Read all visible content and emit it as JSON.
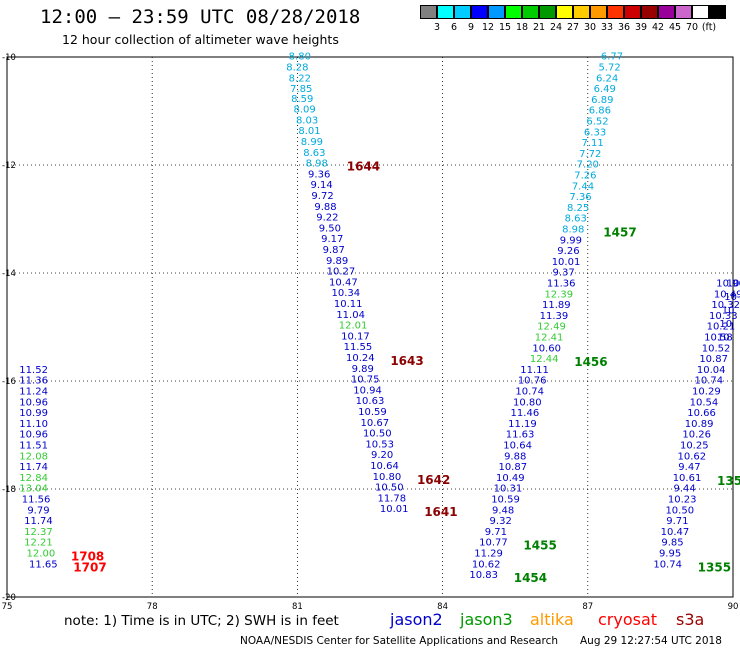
{
  "header": {
    "title": "12:00 – 23:59 UTC 08/28/2018",
    "subtitle": "12 hour collection of altimeter wave heights"
  },
  "legend": {
    "colors": [
      "#808080",
      "#00ffff",
      "#00ccff",
      "#0000ff",
      "#0099ff",
      "#00ff00",
      "#00cc00",
      "#009900",
      "#ffff00",
      "#ffcc00",
      "#ff9900",
      "#ff3300",
      "#cc0000",
      "#990000",
      "#990099",
      "#cc66cc",
      "#ffffff",
      "#000000"
    ],
    "labels": [
      "3",
      "6",
      "9",
      "12",
      "15",
      "18",
      "21",
      "24",
      "27",
      "30",
      "33",
      "36",
      "39",
      "42",
      "45",
      "70",
      "(ft)"
    ]
  },
  "map": {
    "x_ticks": [
      "75",
      "78",
      "81",
      "84",
      "87",
      "90"
    ],
    "y_ticks": [
      "-10",
      "-12",
      "-14",
      "-16",
      "-18",
      "-20"
    ],
    "lon_range": [
      75,
      90
    ],
    "lat_range": [
      -20,
      -10
    ]
  },
  "tracks": [
    {
      "pass": "1644",
      "pass_color": "#8b0000",
      "points": [
        {
          "lon": 81.05,
          "lat": -10.05,
          "v": "8.80"
        },
        {
          "lon": 81.0,
          "lat": -10.25,
          "v": "8.28"
        },
        {
          "lon": 81.05,
          "lat": -10.45,
          "v": "8.22"
        },
        {
          "lon": 81.08,
          "lat": -10.65,
          "v": "7.85"
        },
        {
          "lon": 81.1,
          "lat": -10.83,
          "v": "8.59"
        },
        {
          "lon": 81.15,
          "lat": -11.03,
          "v": "8.09"
        },
        {
          "lon": 81.2,
          "lat": -11.23,
          "v": "8.03"
        },
        {
          "lon": 81.25,
          "lat": -11.43,
          "v": "8.01"
        },
        {
          "lon": 81.3,
          "lat": -11.63,
          "v": "8.99"
        },
        {
          "lon": 81.35,
          "lat": -11.83,
          "v": "8.63"
        },
        {
          "lon": 81.4,
          "lat": -12.03,
          "v": "8.98"
        }
      ]
    },
    {
      "pass": "1643",
      "pass_color": "#8b0000",
      "points": [
        {
          "lon": 81.45,
          "lat": -12.23,
          "v": "9.36"
        },
        {
          "lon": 81.5,
          "lat": -12.43,
          "v": "9.14"
        },
        {
          "lon": 81.52,
          "lat": -12.63,
          "v": "9.72"
        },
        {
          "lon": 81.58,
          "lat": -12.83,
          "v": "9.88"
        },
        {
          "lon": 81.62,
          "lat": -13.03,
          "v": "9.22"
        },
        {
          "lon": 81.67,
          "lat": -13.23,
          "v": "9.50"
        },
        {
          "lon": 81.72,
          "lat": -13.43,
          "v": "9.17"
        },
        {
          "lon": 81.75,
          "lat": -13.63,
          "v": "9.87"
        },
        {
          "lon": 81.82,
          "lat": -13.83,
          "v": "9.89"
        },
        {
          "lon": 81.9,
          "lat": -14.03,
          "v": "10.27"
        },
        {
          "lon": 81.95,
          "lat": -14.23,
          "v": "10.47"
        },
        {
          "lon": 82.0,
          "lat": -14.43,
          "v": "10.34"
        },
        {
          "lon": 82.05,
          "lat": -14.63,
          "v": "10.11"
        },
        {
          "lon": 82.1,
          "lat": -14.83,
          "v": "11.04"
        },
        {
          "lon": 82.15,
          "lat": -15.03,
          "v": "12.01"
        },
        {
          "lon": 82.2,
          "lat": -15.23,
          "v": "10.17"
        },
        {
          "lon": 82.25,
          "lat": -15.43,
          "v": "11.55"
        },
        {
          "lon": 82.3,
          "lat": -15.63,
          "v": "10.24"
        }
      ]
    },
    {
      "pass": "1642",
      "pass_color": "#8b0000",
      "points": [
        {
          "lon": 82.35,
          "lat": -15.83,
          "v": "9.89"
        },
        {
          "lon": 82.4,
          "lat": -16.03,
          "v": "10.75"
        },
        {
          "lon": 82.45,
          "lat": -16.23,
          "v": "10.94"
        },
        {
          "lon": 82.5,
          "lat": -16.43,
          "v": "10.63"
        },
        {
          "lon": 82.55,
          "lat": -16.63,
          "v": "10.59"
        },
        {
          "lon": 82.6,
          "lat": -16.83,
          "v": "10.67"
        },
        {
          "lon": 82.65,
          "lat": -17.03,
          "v": "10.50"
        },
        {
          "lon": 82.7,
          "lat": -17.23,
          "v": "10.53"
        },
        {
          "lon": 82.75,
          "lat": -17.43,
          "v": "9.20"
        },
        {
          "lon": 82.8,
          "lat": -17.63,
          "v": "10.64"
        },
        {
          "lon": 82.85,
          "lat": -17.83,
          "v": "10.80"
        }
      ]
    },
    {
      "pass": "1641",
      "pass_color": "#8b0000",
      "points": [
        {
          "lon": 82.9,
          "lat": -18.03,
          "v": "10.50"
        },
        {
          "lon": 82.95,
          "lat": -18.23,
          "v": "11.78"
        },
        {
          "lon": 83.0,
          "lat": -18.43,
          "v": "10.01"
        }
      ]
    },
    {
      "pass": "1457",
      "pass_color": "#008000",
      "points": [
        {
          "lon": 87.5,
          "lat": -10.05,
          "v": "6.77"
        },
        {
          "lon": 87.45,
          "lat": -10.25,
          "v": "5.72"
        },
        {
          "lon": 87.4,
          "lat": -10.45,
          "v": "6.24"
        },
        {
          "lon": 87.35,
          "lat": -10.65,
          "v": "6.49"
        },
        {
          "lon": 87.3,
          "lat": -10.85,
          "v": "6.89"
        },
        {
          "lon": 87.25,
          "lat": -11.05,
          "v": "6.86"
        },
        {
          "lon": 87.2,
          "lat": -11.25,
          "v": "6.52"
        },
        {
          "lon": 87.15,
          "lat": -11.45,
          "v": "6.33"
        },
        {
          "lon": 87.1,
          "lat": -11.65,
          "v": "7.11"
        },
        {
          "lon": 87.05,
          "lat": -11.85,
          "v": "7.72"
        },
        {
          "lon": 87.0,
          "lat": -12.05,
          "v": "7.20"
        },
        {
          "lon": 86.95,
          "lat": -12.25,
          "v": "7.26"
        },
        {
          "lon": 86.9,
          "lat": -12.45,
          "v": "7.44"
        },
        {
          "lon": 86.85,
          "lat": -12.65,
          "v": "7.36"
        },
        {
          "lon": 86.8,
          "lat": -12.85,
          "v": "8.25"
        },
        {
          "lon": 86.75,
          "lat": -13.05,
          "v": "8.63"
        },
        {
          "lon": 86.7,
          "lat": -13.25,
          "v": "8.98"
        }
      ]
    },
    {
      "pass": "1456",
      "pass_color": "#008000",
      "points": [
        {
          "lon": 86.65,
          "lat": -13.45,
          "v": "9.99"
        },
        {
          "lon": 86.6,
          "lat": -13.65,
          "v": "9.26"
        },
        {
          "lon": 86.55,
          "lat": -13.85,
          "v": "10.01"
        },
        {
          "lon": 86.5,
          "lat": -14.05,
          "v": "9.37"
        },
        {
          "lon": 86.45,
          "lat": -14.25,
          "v": "11.36"
        },
        {
          "lon": 86.4,
          "lat": -14.45,
          "v": "12.39"
        },
        {
          "lon": 86.35,
          "lat": -14.65,
          "v": "11.89"
        },
        {
          "lon": 86.3,
          "lat": -14.85,
          "v": "11.39"
        },
        {
          "lon": 86.25,
          "lat": -15.05,
          "v": "12.49"
        },
        {
          "lon": 86.2,
          "lat": -15.25,
          "v": "12.41"
        },
        {
          "lon": 86.15,
          "lat": -15.45,
          "v": "10.60"
        },
        {
          "lon": 86.1,
          "lat": -15.65,
          "v": "12.44"
        }
      ]
    },
    {
      "pass": "1455",
      "pass_color": "#008000",
      "points": [
        {
          "lon": 85.9,
          "lat": -15.85,
          "v": "11.11"
        },
        {
          "lon": 85.85,
          "lat": -16.05,
          "v": "10.76"
        },
        {
          "lon": 85.8,
          "lat": -16.25,
          "v": "10.74"
        },
        {
          "lon": 85.75,
          "lat": -16.45,
          "v": "10.80"
        },
        {
          "lon": 85.7,
          "lat": -16.65,
          "v": "11.46"
        },
        {
          "lon": 85.65,
          "lat": -16.85,
          "v": "11.19"
        },
        {
          "lon": 85.6,
          "lat": -17.05,
          "v": "11.63"
        },
        {
          "lon": 85.55,
          "lat": -17.25,
          "v": "10.64"
        },
        {
          "lon": 85.5,
          "lat": -17.45,
          "v": "9.88"
        },
        {
          "lon": 85.45,
          "lat": -17.65,
          "v": "10.87"
        },
        {
          "lon": 85.4,
          "lat": -17.85,
          "v": "10.49"
        },
        {
          "lon": 85.35,
          "lat": -18.05,
          "v": "10.31"
        },
        {
          "lon": 85.3,
          "lat": -18.25,
          "v": "10.59"
        },
        {
          "lon": 85.25,
          "lat": -18.45,
          "v": "9.48"
        },
        {
          "lon": 85.2,
          "lat": -18.65,
          "v": "9.32"
        },
        {
          "lon": 85.1,
          "lat": -18.85,
          "v": "9.71"
        },
        {
          "lon": 85.05,
          "lat": -19.05,
          "v": "10.77"
        }
      ]
    },
    {
      "pass": "1454",
      "pass_color": "#008000",
      "points": [
        {
          "lon": 84.95,
          "lat": -19.25,
          "v": "11.29"
        },
        {
          "lon": 84.9,
          "lat": -19.45,
          "v": "10.62"
        },
        {
          "lon": 84.85,
          "lat": -19.65,
          "v": "10.83"
        }
      ]
    },
    {
      "pass": "1708",
      "pass_color": "#ff0000",
      "points": [
        {
          "lon": 75.55,
          "lat": -15.85,
          "v": "11.52"
        },
        {
          "lon": 75.55,
          "lat": -16.05,
          "v": "11.36"
        },
        {
          "lon": 75.55,
          "lat": -16.25,
          "v": "11.24"
        },
        {
          "lon": 75.55,
          "lat": -16.45,
          "v": "10.96"
        },
        {
          "lon": 75.55,
          "lat": -16.65,
          "v": "10.99"
        },
        {
          "lon": 75.55,
          "lat": -16.85,
          "v": "11.10"
        },
        {
          "lon": 75.55,
          "lat": -17.05,
          "v": "10.96"
        },
        {
          "lon": 75.55,
          "lat": -17.25,
          "v": "11.51"
        },
        {
          "lon": 75.55,
          "lat": -17.45,
          "v": "12.08"
        },
        {
          "lon": 75.55,
          "lat": -17.65,
          "v": "11.74"
        },
        {
          "lon": 75.55,
          "lat": -17.85,
          "v": "12.84"
        },
        {
          "lon": 75.55,
          "lat": -18.05,
          "v": "13.04"
        },
        {
          "lon": 75.6,
          "lat": -18.25,
          "v": "11.56"
        },
        {
          "lon": 75.65,
          "lat": -18.45,
          "v": "9.79"
        },
        {
          "lon": 75.65,
          "lat": -18.65,
          "v": "11.74"
        },
        {
          "lon": 75.65,
          "lat": -18.85,
          "v": "12.37"
        },
        {
          "lon": 75.65,
          "lat": -19.05,
          "v": "12.21"
        },
        {
          "lon": 75.7,
          "lat": -19.25,
          "v": "12.00"
        }
      ]
    },
    {
      "pass": "1707",
      "pass_color": "#ff0000",
      "points": [
        {
          "lon": 75.75,
          "lat": -19.45,
          "v": "11.65"
        }
      ]
    },
    {
      "pass": "1356",
      "pass_color": "#008000",
      "points": [
        {
          "lon": 89.95,
          "lat": -14.25,
          "v": "10.96"
        },
        {
          "lon": 89.9,
          "lat": -14.45,
          "v": "10.49"
        },
        {
          "lon": 89.85,
          "lat": -14.65,
          "v": "10.32"
        },
        {
          "lon": 89.8,
          "lat": -14.85,
          "v": "10.33"
        },
        {
          "lon": 89.75,
          "lat": -15.05,
          "v": "10.21"
        },
        {
          "lon": 89.7,
          "lat": -15.25,
          "v": "10.58"
        },
        {
          "lon": 89.65,
          "lat": -15.45,
          "v": "10.52"
        },
        {
          "lon": 89.6,
          "lat": -15.65,
          "v": "10.87"
        },
        {
          "lon": 89.55,
          "lat": -15.85,
          "v": "10.04"
        },
        {
          "lon": 89.5,
          "lat": -16.05,
          "v": "10.74"
        },
        {
          "lon": 89.45,
          "lat": -16.25,
          "v": "10.29"
        },
        {
          "lon": 89.4,
          "lat": -16.45,
          "v": "10.54"
        },
        {
          "lon": 89.35,
          "lat": -16.65,
          "v": "10.66"
        },
        {
          "lon": 89.3,
          "lat": -16.85,
          "v": "10.89"
        },
        {
          "lon": 89.25,
          "lat": -17.05,
          "v": "10.26"
        },
        {
          "lon": 89.2,
          "lat": -17.25,
          "v": "10.25"
        },
        {
          "lon": 89.15,
          "lat": -17.45,
          "v": "10.62"
        },
        {
          "lon": 89.1,
          "lat": -17.65,
          "v": "9.47"
        },
        {
          "lon": 89.05,
          "lat": -17.85,
          "v": "10.61"
        }
      ]
    },
    {
      "pass": "1355",
      "pass_color": "#008000",
      "points": [
        {
          "lon": 89.0,
          "lat": -18.05,
          "v": "9.44"
        },
        {
          "lon": 88.95,
          "lat": -18.25,
          "v": "10.23"
        },
        {
          "lon": 88.9,
          "lat": -18.45,
          "v": "10.50"
        },
        {
          "lon": 88.85,
          "lat": -18.65,
          "v": "9.71"
        },
        {
          "lon": 88.8,
          "lat": -18.85,
          "v": "10.47"
        },
        {
          "lon": 88.75,
          "lat": -19.05,
          "v": "9.85"
        },
        {
          "lon": 88.7,
          "lat": -19.25,
          "v": "9.95"
        },
        {
          "lon": 88.65,
          "lat": -19.45,
          "v": "10.74"
        }
      ]
    },
    {
      "pass": "1355",
      "pass_color": "#008000",
      "points": [
        {
          "lon": 90.0,
          "lat": -14.25,
          "v": "10"
        },
        {
          "lon": 89.95,
          "lat": -14.5,
          "v": "10"
        },
        {
          "lon": 89.9,
          "lat": -14.75,
          "v": "10"
        },
        {
          "lon": 89.85,
          "lat": -15.0,
          "v": "10"
        },
        {
          "lon": 89.8,
          "lat": -15.25,
          "v": "10"
        }
      ]
    }
  ],
  "footer": {
    "note": "note:  1) Time is in UTC;  2) SWH is in feet",
    "satellites": [
      {
        "name": "jason2",
        "color": "#0000cc"
      },
      {
        "name": "jason3",
        "color": "#009900"
      },
      {
        "name": "altika",
        "color": "#ff9900"
      },
      {
        "name": "cryosat",
        "color": "#ff0000"
      },
      {
        "name": "s3a",
        "color": "#990000"
      }
    ],
    "credit": "NOAA/NESDIS Center for Satellite Applications and Research",
    "timestamp": "Aug 29 12:27:54 UTC 2018"
  }
}
